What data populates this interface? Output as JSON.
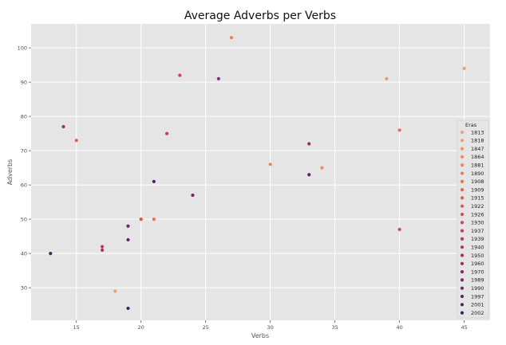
{
  "chart_data": {
    "type": "scatter",
    "title": "Average Adverbs per Verbs",
    "xlabel": "Verbs",
    "ylabel": "Adverbs",
    "xlim": [
      11.5,
      47
    ],
    "ylim": [
      20.5,
      107
    ],
    "xticks": [
      15,
      20,
      25,
      30,
      35,
      40,
      45
    ],
    "yticks": [
      30,
      40,
      50,
      60,
      70,
      80,
      90,
      100
    ],
    "grid": true,
    "legend_title": "Eras",
    "legend_position": "right",
    "eras": [
      {
        "label": "1813",
        "color": "#f5a06c"
      },
      {
        "label": "1818",
        "color": "#f59a68"
      },
      {
        "label": "1847",
        "color": "#f39264"
      },
      {
        "label": "1864",
        "color": "#f28b5f"
      },
      {
        "label": "1881",
        "color": "#f0835a"
      },
      {
        "label": "1890",
        "color": "#ee7a56"
      },
      {
        "label": "1908",
        "color": "#ec7152"
      },
      {
        "label": "1909",
        "color": "#e96850"
      },
      {
        "label": "1915",
        "color": "#e45f4f"
      },
      {
        "label": "1922",
        "color": "#de564f"
      },
      {
        "label": "1926",
        "color": "#d74e52"
      },
      {
        "label": "1930",
        "color": "#cf4655"
      },
      {
        "label": "1937",
        "color": "#c63f59"
      },
      {
        "label": "1939",
        "color": "#bc385d"
      },
      {
        "label": "1940",
        "color": "#b03362"
      },
      {
        "label": "1950",
        "color": "#a32f65"
      },
      {
        "label": "1960",
        "color": "#952c67"
      },
      {
        "label": "1970",
        "color": "#872a69"
      },
      {
        "label": "1989",
        "color": "#7a286a"
      },
      {
        "label": "1990",
        "color": "#6c2669"
      },
      {
        "label": "1997",
        "color": "#5e2467"
      },
      {
        "label": "2001",
        "color": "#512262"
      },
      {
        "label": "2002",
        "color": "#45205c"
      }
    ],
    "points": [
      {
        "x": 45,
        "y": 94,
        "era": "1813"
      },
      {
        "x": 18,
        "y": 29,
        "era": "1818"
      },
      {
        "x": 39,
        "y": 91,
        "era": "1847"
      },
      {
        "x": 34,
        "y": 65,
        "era": "1864"
      },
      {
        "x": 30,
        "y": 66,
        "era": "1881"
      },
      {
        "x": 27,
        "y": 103,
        "era": "1890"
      },
      {
        "x": 21,
        "y": 50,
        "era": "1908"
      },
      {
        "x": 40,
        "y": 76,
        "era": "1909"
      },
      {
        "x": 15,
        "y": 73,
        "era": "1915"
      },
      {
        "x": 20,
        "y": 50,
        "era": "1922"
      },
      {
        "x": 40,
        "y": 47,
        "era": "1926"
      },
      {
        "x": 23,
        "y": 92,
        "era": "1930"
      },
      {
        "x": 22,
        "y": 75,
        "era": "1937"
      },
      {
        "x": 17,
        "y": 42,
        "era": "1939"
      },
      {
        "x": 17,
        "y": 41,
        "era": "1940"
      },
      {
        "x": 14,
        "y": 77,
        "era": "1950"
      },
      {
        "x": 33,
        "y": 72,
        "era": "1960"
      },
      {
        "x": 26,
        "y": 91,
        "era": "1970"
      },
      {
        "x": 24,
        "y": 57,
        "era": "1989"
      },
      {
        "x": 19,
        "y": 48,
        "era": "1990"
      },
      {
        "x": 19,
        "y": 44,
        "era": "1997"
      },
      {
        "x": 33,
        "y": 63,
        "era": "1997"
      },
      {
        "x": 21,
        "y": 61,
        "era": "2001"
      },
      {
        "x": 13,
        "y": 40,
        "era": "2001"
      },
      {
        "x": 19,
        "y": 24,
        "era": "2002"
      }
    ]
  }
}
